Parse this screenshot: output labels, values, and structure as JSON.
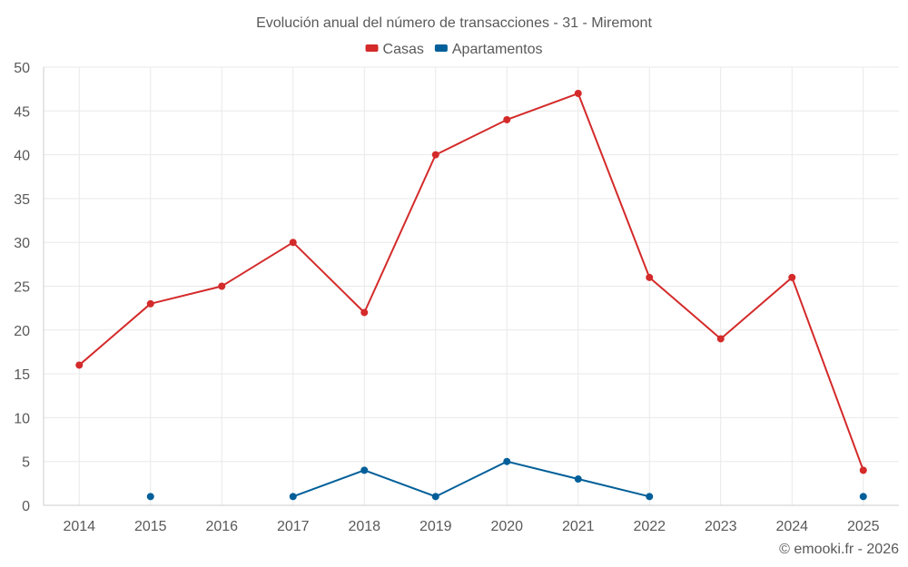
{
  "chart_data": {
    "type": "line",
    "title": "Evolución anual del número de transacciones - 31 - Miremont",
    "categories": [
      "2014",
      "2015",
      "2016",
      "2017",
      "2018",
      "2019",
      "2020",
      "2021",
      "2022",
      "2023",
      "2024",
      "2025"
    ],
    "ylim": [
      0,
      50
    ],
    "yticks": [
      0,
      5,
      10,
      15,
      20,
      25,
      30,
      35,
      40,
      45,
      50
    ],
    "grid": true,
    "legend_position": "top-center",
    "series": [
      {
        "name": "Casas",
        "color": "#d42a2a",
        "values": [
          16,
          23,
          25,
          30,
          22,
          40,
          44,
          47,
          26,
          19,
          26,
          4
        ]
      },
      {
        "name": "Apartamentos",
        "color": "#005f99",
        "values": [
          null,
          1,
          null,
          1,
          4,
          1,
          5,
          3,
          1,
          null,
          null,
          1
        ]
      }
    ]
  },
  "credit": "© emooki.fr - 2026"
}
